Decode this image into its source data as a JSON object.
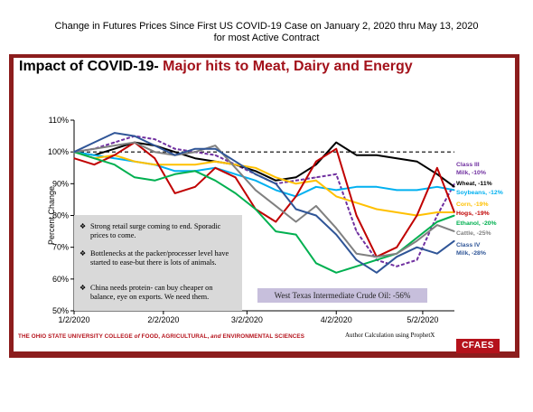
{
  "slide": {
    "title_main": "Impact of COVID-19- ",
    "title_highlight": "Major hits to Meat, Dairy and Energy",
    "footer_left_1": "THE OHIO STATE UNIVERSITY COLLEGE ",
    "footer_left_of": "of",
    "footer_left_2": " FOOD, AGRICULTURAL, ",
    "footer_left_and": "and",
    "footer_left_3": " ENVIRONMENTAL SCIENCES",
    "footer_right": "Author Calculation using ProphetX",
    "logo": "CFAES"
  },
  "colors": {
    "frame": "#8c1d1d",
    "accent_red": "#a3121b",
    "class3_milk": "#7030a0",
    "wheat": "#000000",
    "soybeans": "#00b0f0",
    "corn": "#ffc000",
    "hogs": "#c00000",
    "ethanol": "#00b050",
    "cattle": "#808080",
    "class4_milk": "#2f5597"
  },
  "chart_data": {
    "type": "line",
    "title": "Change in Futures Prices Since First US COVID-19 Case on January 2, 2020 thru May 13, 2020 for most Active Contract",
    "ylabel": "Percent Change",
    "xlabel": "",
    "ylim": [
      50,
      110
    ],
    "yticks": [
      "50%",
      "60%",
      "70%",
      "80%",
      "90%",
      "100%",
      "110%"
    ],
    "xticks": [
      "1/2/2020",
      "2/2/2020",
      "3/2/2020",
      "4/2/2020",
      "5/2/2020"
    ],
    "reference_line": 100,
    "x": [
      "1/2/2020",
      "1/9/2020",
      "1/16/2020",
      "1/23/2020",
      "1/30/2020",
      "2/6/2020",
      "2/13/2020",
      "2/20/2020",
      "2/27/2020",
      "3/5/2020",
      "3/12/2020",
      "3/19/2020",
      "3/26/2020",
      "4/2/2020",
      "4/9/2020",
      "4/16/2020",
      "4/23/2020",
      "4/30/2020",
      "5/7/2020",
      "5/13/2020"
    ],
    "series": [
      {
        "name": "Class III Milk, -10%",
        "color_key": "class3_milk",
        "dashed": true,
        "values": [
          100,
          101,
          103,
          105,
          104,
          101,
          100,
          99,
          96,
          93,
          90,
          91,
          92,
          93,
          75,
          66,
          64,
          66,
          80,
          90
        ]
      },
      {
        "name": "Wheat, -11%",
        "color_key": "wheat",
        "dashed": false,
        "values": [
          100,
          99,
          101,
          103,
          102,
          100,
          98,
          97,
          96,
          94,
          91,
          92,
          96,
          103,
          99,
          99,
          98,
          97,
          93,
          89
        ]
      },
      {
        "name": "Soybeans, -12%",
        "color_key": "soybeans",
        "dashed": false,
        "values": [
          100,
          99,
          98,
          97,
          96,
          94,
          94,
          95,
          93,
          91,
          88,
          86,
          89,
          88,
          89,
          89,
          88,
          88,
          89,
          88
        ]
      },
      {
        "name": "Corn, -19%",
        "color_key": "corn",
        "dashed": false,
        "values": [
          100,
          98,
          99,
          97,
          96,
          96,
          96,
          97,
          96,
          95,
          92,
          90,
          91,
          86,
          84,
          82,
          81,
          80,
          81,
          81
        ]
      },
      {
        "name": "Hogs, -19%",
        "color_key": "hogs",
        "dashed": false,
        "values": [
          98,
          96,
          99,
          103,
          98,
          87,
          89,
          95,
          92,
          82,
          78,
          86,
          97,
          101,
          80,
          67,
          70,
          80,
          95,
          81
        ]
      },
      {
        "name": "Ethanol, -20%",
        "color_key": "ethanol",
        "dashed": false,
        "values": [
          100,
          98,
          96,
          92,
          91,
          93,
          94,
          91,
          87,
          82,
          75,
          74,
          65,
          62,
          64,
          66,
          68,
          73,
          78,
          80
        ]
      },
      {
        "name": "Cattle, -25%",
        "color_key": "cattle",
        "dashed": false,
        "values": [
          100,
          101,
          102,
          103,
          100,
          99,
          100,
          102,
          95,
          88,
          83,
          78,
          83,
          76,
          68,
          67,
          68,
          72,
          77,
          75
        ]
      },
      {
        "name": "Class IV Milk, -28%",
        "color_key": "class4_milk",
        "dashed": false,
        "values": [
          100,
          103,
          106,
          105,
          102,
          99,
          101,
          101,
          97,
          93,
          90,
          82,
          80,
          74,
          66,
          62,
          67,
          70,
          68,
          72
        ]
      }
    ],
    "annotations": {
      "notes": [
        "Strong retail surge coming to end. Sporadic prices to come.",
        "Bottlenecks at the packer/processer level have started to ease-but there is lots of animals.",
        "China needs protein- can buy cheaper on balance, eye on exports. We need them."
      ],
      "wti": "West Texas Intermediate Crude Oil: -56%"
    },
    "grid": false,
    "legend": "right"
  }
}
